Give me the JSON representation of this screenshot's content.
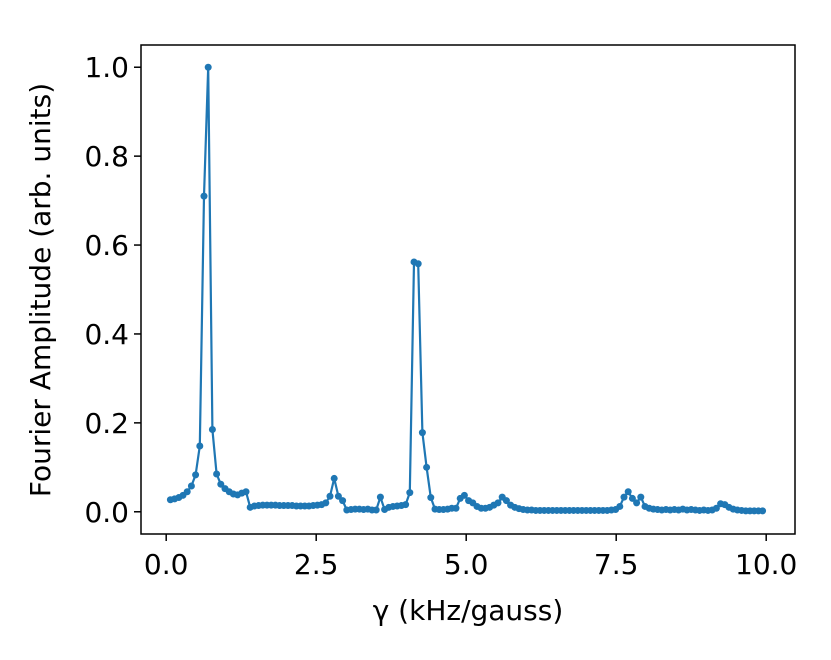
{
  "chart_data": {
    "type": "line",
    "xlabel": "γ (kHz/gauss)",
    "ylabel": "Fourier Amplitude (arb. units)",
    "x": [
      0.07,
      0.14,
      0.21,
      0.28,
      0.35,
      0.42,
      0.49,
      0.56,
      0.63,
      0.7,
      0.77,
      0.84,
      0.91,
      0.98,
      1.05,
      1.12,
      1.19,
      1.26,
      1.33,
      1.4,
      1.47,
      1.54,
      1.61,
      1.68,
      1.75,
      1.82,
      1.89,
      1.96,
      2.03,
      2.1,
      2.17,
      2.24,
      2.31,
      2.38,
      2.45,
      2.52,
      2.59,
      2.66,
      2.73,
      2.8,
      2.87,
      2.94,
      3.01,
      3.08,
      3.15,
      3.22,
      3.29,
      3.36,
      3.43,
      3.5,
      3.57,
      3.64,
      3.71,
      3.78,
      3.85,
      3.92,
      3.99,
      4.06,
      4.13,
      4.2,
      4.27,
      4.34,
      4.41,
      4.48,
      4.55,
      4.62,
      4.69,
      4.76,
      4.83,
      4.9,
      4.97,
      5.04,
      5.11,
      5.18,
      5.25,
      5.32,
      5.39,
      5.46,
      5.53,
      5.6,
      5.67,
      5.74,
      5.81,
      5.88,
      5.95,
      6.02,
      6.09,
      6.16,
      6.23,
      6.3,
      6.37,
      6.44,
      6.51,
      6.58,
      6.65,
      6.72,
      6.79,
      6.86,
      6.93,
      7.0,
      7.07,
      7.14,
      7.21,
      7.28,
      7.35,
      7.42,
      7.49,
      7.56,
      7.63,
      7.7,
      7.77,
      7.84,
      7.91,
      7.98,
      8.05,
      8.12,
      8.19,
      8.26,
      8.33,
      8.4,
      8.47,
      8.54,
      8.61,
      8.68,
      8.75,
      8.82,
      8.89,
      8.96,
      9.03,
      9.1,
      9.17,
      9.24,
      9.31,
      9.38,
      9.45,
      9.52,
      9.59,
      9.66,
      9.73,
      9.8,
      9.87,
      9.94
    ],
    "series": [
      {
        "color": "#1f77b4",
        "values": [
          0.027,
          0.029,
          0.032,
          0.037,
          0.045,
          0.058,
          0.083,
          0.148,
          0.71,
          1.0,
          0.185,
          0.085,
          0.062,
          0.052,
          0.045,
          0.04,
          0.038,
          0.042,
          0.045,
          0.01,
          0.013,
          0.014,
          0.015,
          0.015,
          0.015,
          0.015,
          0.014,
          0.014,
          0.014,
          0.014,
          0.013,
          0.013,
          0.013,
          0.013,
          0.014,
          0.015,
          0.016,
          0.02,
          0.035,
          0.075,
          0.035,
          0.025,
          0.004,
          0.005,
          0.006,
          0.006,
          0.005,
          0.006,
          0.004,
          0.004,
          0.033,
          0.005,
          0.01,
          0.012,
          0.013,
          0.014,
          0.016,
          0.043,
          0.562,
          0.558,
          0.178,
          0.1,
          0.032,
          0.006,
          0.005,
          0.005,
          0.006,
          0.008,
          0.008,
          0.03,
          0.037,
          0.025,
          0.02,
          0.012,
          0.008,
          0.008,
          0.01,
          0.015,
          0.02,
          0.033,
          0.025,
          0.015,
          0.01,
          0.007,
          0.005,
          0.004,
          0.004,
          0.003,
          0.003,
          0.003,
          0.003,
          0.003,
          0.003,
          0.003,
          0.003,
          0.003,
          0.003,
          0.003,
          0.003,
          0.003,
          0.003,
          0.003,
          0.003,
          0.003,
          0.003,
          0.004,
          0.005,
          0.012,
          0.033,
          0.045,
          0.03,
          0.02,
          0.033,
          0.012,
          0.008,
          0.006,
          0.005,
          0.004,
          0.005,
          0.004,
          0.005,
          0.004,
          0.006,
          0.004,
          0.005,
          0.004,
          0.003,
          0.004,
          0.003,
          0.004,
          0.008,
          0.018,
          0.016,
          0.01,
          0.006,
          0.004,
          0.003,
          0.002,
          0.002,
          0.002,
          0.002,
          0.002
        ]
      }
    ],
    "xlim": [
      -0.42,
      10.48
    ],
    "ylim": [
      -0.05,
      1.05
    ],
    "xticks": [
      {
        "value": 0,
        "label": "0.0"
      },
      2.5,
      {
        "value": 5,
        "label": "5.0"
      },
      7.5,
      {
        "value": 10,
        "label": "10.0"
      }
    ],
    "yticks": [
      {
        "value": 0,
        "label": "0.0"
      },
      0.2,
      0.4,
      0.6,
      0.8,
      {
        "value": 1,
        "label": "1.0"
      }
    ],
    "markers": true
  }
}
